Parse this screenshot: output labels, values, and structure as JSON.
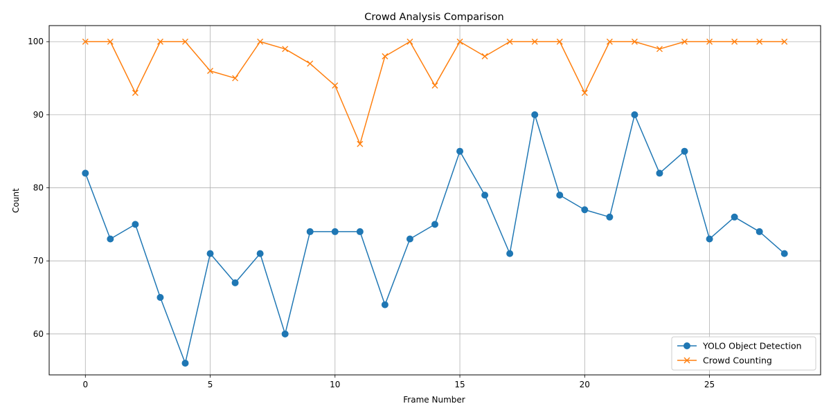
{
  "chart_data": {
    "type": "line",
    "title": "Crowd Analysis Comparison",
    "xlabel": "Frame Number",
    "ylabel": "Count",
    "xlim": [
      -1.45,
      29.45
    ],
    "ylim": [
      54.4,
      102.2
    ],
    "xticks": [
      0,
      5,
      10,
      15,
      20,
      25
    ],
    "yticks": [
      60,
      70,
      80,
      90,
      100
    ],
    "grid": true,
    "legend_position": "lower-right",
    "x": [
      0,
      1,
      2,
      3,
      4,
      5,
      6,
      7,
      8,
      9,
      10,
      11,
      12,
      13,
      14,
      15,
      16,
      17,
      18,
      19,
      20,
      21,
      22,
      23,
      24,
      25,
      26,
      27,
      28
    ],
    "series": [
      {
        "name": "YOLO Object Detection",
        "color": "#1f77b4",
        "marker": "circle",
        "values": [
          82,
          73,
          75,
          65,
          56,
          71,
          67,
          71,
          60,
          74,
          74,
          74,
          64,
          73,
          75,
          85,
          79,
          71,
          90,
          79,
          77,
          76,
          90,
          82,
          85,
          73,
          76,
          74,
          71
        ]
      },
      {
        "name": "Crowd Counting",
        "color": "#ff7f0e",
        "marker": "x",
        "values": [
          100,
          100,
          93,
          100,
          100,
          96,
          95,
          100,
          99,
          97,
          94,
          86,
          98,
          100,
          94,
          100,
          98,
          100,
          100,
          100,
          93,
          100,
          100,
          99,
          100,
          100,
          100,
          100,
          100
        ]
      }
    ]
  }
}
